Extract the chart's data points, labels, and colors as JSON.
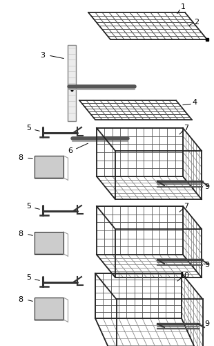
{
  "bg_color": "#ffffff",
  "fig_width": 3.1,
  "fig_height": 5.0,
  "dpi": 100,
  "gray": "#555555",
  "dark": "#222222",
  "med": "#888888",
  "light": "#aaaaaa"
}
